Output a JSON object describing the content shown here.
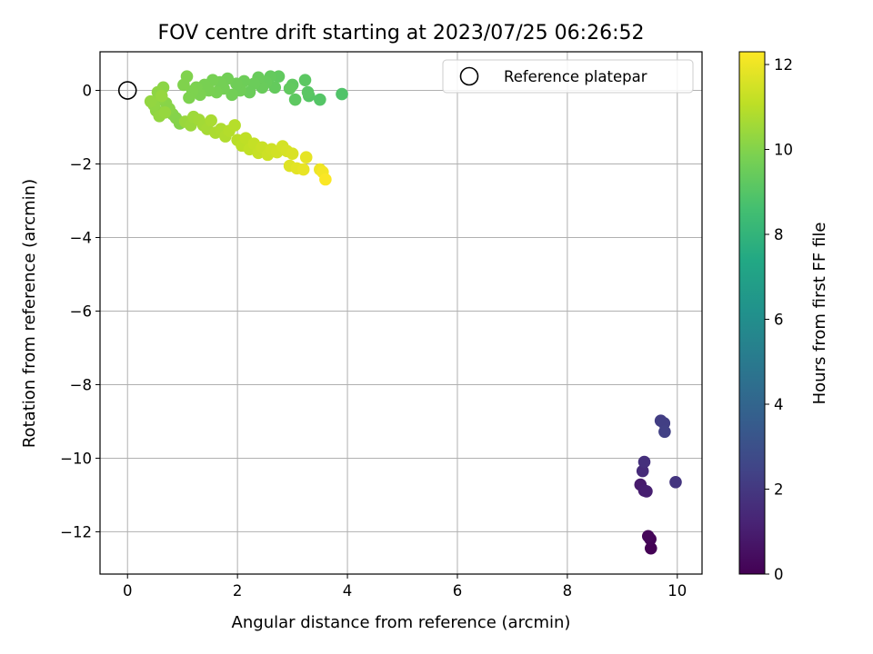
{
  "chart_data": {
    "type": "scatter",
    "title": "FOV centre drift starting at 2023/07/25 06:26:52",
    "xlabel": "Angular distance from reference (arcmin)",
    "ylabel": "Rotation from reference (arcmin)",
    "xlim": [
      -0.5,
      10.45
    ],
    "ylim": [
      -13.15,
      1.05
    ],
    "x_ticks": [
      0,
      2,
      4,
      6,
      8,
      10
    ],
    "x_tick_labels": [
      "0",
      "2",
      "4",
      "6",
      "8",
      "10"
    ],
    "y_ticks": [
      0,
      -2,
      -4,
      -6,
      -8,
      -10,
      -12
    ],
    "y_tick_labels": [
      "0",
      "−2",
      "−4",
      "−6",
      "−8",
      "−10",
      "−12"
    ],
    "grid": true,
    "legend": {
      "position": "top-right",
      "entries": [
        "Reference platepar"
      ]
    },
    "colorbar": {
      "label": "Hours from first FF file",
      "range": [
        0,
        12.3
      ],
      "ticks": [
        0,
        2,
        4,
        6,
        8,
        10,
        12
      ],
      "tick_labels": [
        "0",
        "2",
        "4",
        "6",
        "8",
        "10",
        "12"
      ],
      "colormap": "viridis"
    },
    "reference_point": {
      "x": 0,
      "y": 0
    },
    "points": [
      [
        9.52,
        -12.45,
        0.05
      ],
      [
        9.51,
        -12.2,
        0.12
      ],
      [
        9.47,
        -12.12,
        0.2
      ],
      [
        9.33,
        -10.72,
        0.9
      ],
      [
        9.4,
        -10.88,
        1.0
      ],
      [
        9.44,
        -10.9,
        1.05
      ],
      [
        9.37,
        -10.35,
        1.5
      ],
      [
        9.4,
        -10.1,
        1.7
      ],
      [
        9.97,
        -10.65,
        1.9
      ],
      [
        9.7,
        -8.98,
        2.2
      ],
      [
        9.76,
        -9.05,
        2.25
      ],
      [
        9.77,
        -9.28,
        2.35
      ],
      [
        3.9,
        -0.1,
        8.9
      ],
      [
        3.5,
        -0.25,
        9.0
      ],
      [
        3.3,
        -0.15,
        9.05
      ],
      [
        3.28,
        -0.05,
        9.1
      ],
      [
        3.23,
        0.28,
        9.15
      ],
      [
        3.05,
        -0.25,
        9.2
      ],
      [
        3.0,
        0.15,
        9.25
      ],
      [
        2.95,
        0.05,
        9.3
      ],
      [
        2.75,
        0.38,
        9.3
      ],
      [
        2.68,
        0.08,
        9.35
      ],
      [
        2.6,
        0.38,
        9.35
      ],
      [
        2.52,
        0.22,
        9.4
      ],
      [
        2.45,
        0.08,
        9.45
      ],
      [
        2.38,
        0.35,
        9.45
      ],
      [
        2.3,
        0.18,
        9.5
      ],
      [
        2.22,
        -0.05,
        9.5
      ],
      [
        2.12,
        0.25,
        9.55
      ],
      [
        2.05,
        0.0,
        9.6
      ],
      [
        1.98,
        0.18,
        9.6
      ],
      [
        1.9,
        -0.12,
        9.65
      ],
      [
        1.82,
        0.32,
        9.65
      ],
      [
        1.75,
        0.05,
        9.7
      ],
      [
        1.68,
        0.22,
        9.7
      ],
      [
        1.62,
        -0.05,
        9.75
      ],
      [
        1.55,
        0.28,
        9.75
      ],
      [
        1.48,
        0.0,
        9.8
      ],
      [
        1.4,
        0.15,
        9.8
      ],
      [
        1.32,
        -0.12,
        9.85
      ],
      [
        1.25,
        0.08,
        9.85
      ],
      [
        1.18,
        -0.02,
        9.9
      ],
      [
        1.12,
        -0.2,
        9.9
      ],
      [
        1.08,
        0.38,
        9.95
      ],
      [
        1.02,
        0.15,
        9.95
      ],
      [
        0.95,
        -0.9,
        10.0
      ],
      [
        0.88,
        -0.75,
        10.05
      ],
      [
        0.82,
        -0.65,
        10.05
      ],
      [
        0.76,
        -0.5,
        10.1
      ],
      [
        0.7,
        -0.35,
        10.1
      ],
      [
        0.65,
        0.08,
        10.15
      ],
      [
        0.6,
        -0.22,
        10.15
      ],
      [
        0.55,
        -0.05,
        10.2
      ],
      [
        0.52,
        -0.55,
        10.2
      ],
      [
        0.48,
        -0.4,
        10.25
      ],
      [
        0.42,
        -0.3,
        10.3
      ],
      [
        0.58,
        -0.7,
        10.3
      ],
      [
        0.68,
        -0.6,
        10.35
      ],
      [
        0.62,
        -0.15,
        10.35
      ],
      [
        1.05,
        -0.85,
        10.4
      ],
      [
        1.15,
        -0.95,
        10.45
      ],
      [
        1.2,
        -0.72,
        10.5
      ],
      [
        1.3,
        -0.8,
        10.55
      ],
      [
        1.38,
        -0.95,
        10.6
      ],
      [
        1.45,
        -1.05,
        10.65
      ],
      [
        1.52,
        -0.82,
        10.7
      ],
      [
        1.6,
        -1.15,
        10.75
      ],
      [
        1.7,
        -1.05,
        10.8
      ],
      [
        1.78,
        -1.25,
        10.85
      ],
      [
        1.85,
        -1.1,
        10.9
      ],
      [
        1.95,
        -0.95,
        10.95
      ],
      [
        2.0,
        -1.35,
        11.0
      ],
      [
        2.08,
        -1.5,
        11.05
      ],
      [
        2.15,
        -1.3,
        11.1
      ],
      [
        2.22,
        -1.6,
        11.15
      ],
      [
        2.3,
        -1.45,
        11.2
      ],
      [
        2.38,
        -1.7,
        11.25
      ],
      [
        2.45,
        -1.55,
        11.3
      ],
      [
        2.55,
        -1.75,
        11.35
      ],
      [
        2.62,
        -1.6,
        11.4
      ],
      [
        2.72,
        -1.68,
        11.45
      ],
      [
        2.82,
        -1.52,
        11.5
      ],
      [
        2.9,
        -1.65,
        11.55
      ],
      [
        3.0,
        -1.72,
        11.6
      ],
      [
        2.95,
        -2.05,
        11.7
      ],
      [
        3.08,
        -2.12,
        11.8
      ],
      [
        3.25,
        -1.82,
        11.85
      ],
      [
        3.2,
        -2.15,
        11.9
      ],
      [
        3.5,
        -2.15,
        12.0
      ],
      [
        3.55,
        -2.22,
        12.1
      ],
      [
        3.6,
        -2.42,
        12.25
      ]
    ]
  }
}
